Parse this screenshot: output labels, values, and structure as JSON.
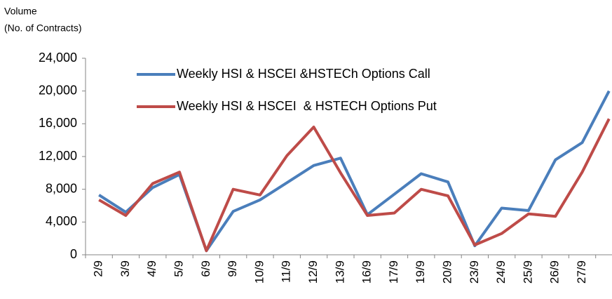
{
  "chart_data": {
    "type": "line",
    "ylabel": [
      "Volume",
      "(No. of Contracts)"
    ],
    "categories": [
      "2/9",
      "3/9",
      "4/9",
      "5/9",
      "6/9",
      "9/9",
      "10/9",
      "11/9",
      "12/9",
      "13/9",
      "16/9",
      "17/9",
      "19/9",
      "20/9",
      "23/9",
      "24/9",
      "25/9",
      "26/9",
      "27/9",
      null
    ],
    "series": [
      {
        "name": "Weekly HSI & HSCEI &HSTECh Options Call",
        "color": "#4a7ebb",
        "values": [
          7300,
          5200,
          8200,
          9800,
          500,
          5300,
          6700,
          8800,
          10900,
          11800,
          4900,
          7400,
          9900,
          8900,
          1100,
          5700,
          5400,
          11600,
          13700,
          20000
        ]
      },
      {
        "name": "Weekly HSI & HSCEI  & HSTECH Options Put",
        "color": "#be4b48",
        "values": [
          6700,
          4800,
          8700,
          10100,
          500,
          8000,
          7300,
          12100,
          15600,
          10000,
          4800,
          5100,
          8000,
          7200,
          1200,
          2600,
          5000,
          4700,
          10100,
          16600
        ]
      }
    ],
    "ylim": [
      0,
      24000
    ],
    "yticks": [
      0,
      {
        "value": 4000,
        "label": "4,000"
      },
      {
        "value": 8000,
        "label": "8,000"
      },
      {
        "value": 12000,
        "label": "12,000"
      },
      {
        "value": 16000,
        "label": "16,000"
      },
      {
        "value": 20000,
        "label": "20,000"
      },
      {
        "value": 24000,
        "label": "24,000"
      }
    ],
    "legend": "top-left"
  }
}
